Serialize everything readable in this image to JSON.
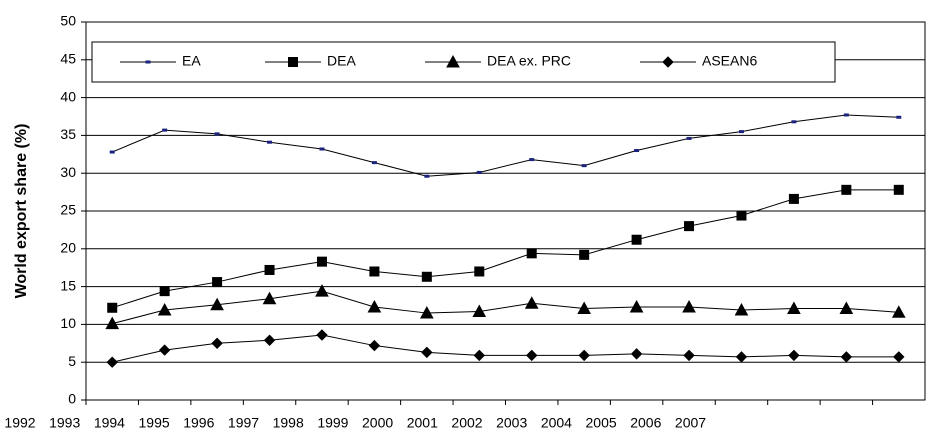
{
  "chart_data": {
    "type": "line",
    "y_label": "World export share (%)",
    "categories": [
      "1992",
      "1993",
      "1994",
      "1995",
      "1996",
      "1997",
      "1998",
      "1999",
      "2000",
      "2001",
      "2002",
      "2003",
      "2004",
      "2005",
      "2006",
      "2007"
    ],
    "series": [
      {
        "name": "EA",
        "color": "#1a237e",
        "marker": "dash",
        "values": [
          32.8,
          35.7,
          35.2,
          34.1,
          33.2,
          31.4,
          29.6,
          30.1,
          31.8,
          31.0,
          33.0,
          34.6,
          35.5,
          36.8,
          37.7,
          37.4
        ]
      },
      {
        "name": "DEA",
        "color": "#000000",
        "marker": "square",
        "values": [
          12.2,
          14.4,
          15.6,
          17.2,
          18.3,
          17.0,
          16.3,
          17.0,
          19.4,
          19.2,
          21.2,
          23.0,
          24.4,
          26.6,
          27.8,
          27.8
        ]
      },
      {
        "name": "DEA ex. PRC",
        "color": "#000000",
        "marker": "triangle",
        "values": [
          10.1,
          11.9,
          12.6,
          13.4,
          14.4,
          12.3,
          11.5,
          11.7,
          12.8,
          12.1,
          12.3,
          12.3,
          11.9,
          12.1,
          12.1,
          11.6
        ]
      },
      {
        "name": "ASEAN6",
        "color": "#000000",
        "marker": "diamond",
        "values": [
          5.0,
          6.6,
          7.5,
          7.9,
          8.6,
          7.2,
          6.3,
          5.9,
          5.9,
          5.9,
          6.1,
          5.9,
          5.7,
          5.9,
          5.7,
          5.7
        ]
      }
    ],
    "ylim": [
      0,
      50
    ],
    "yticks": [
      0,
      5,
      10,
      15,
      20,
      25,
      30,
      35,
      40,
      45,
      50
    ],
    "grid": true
  }
}
